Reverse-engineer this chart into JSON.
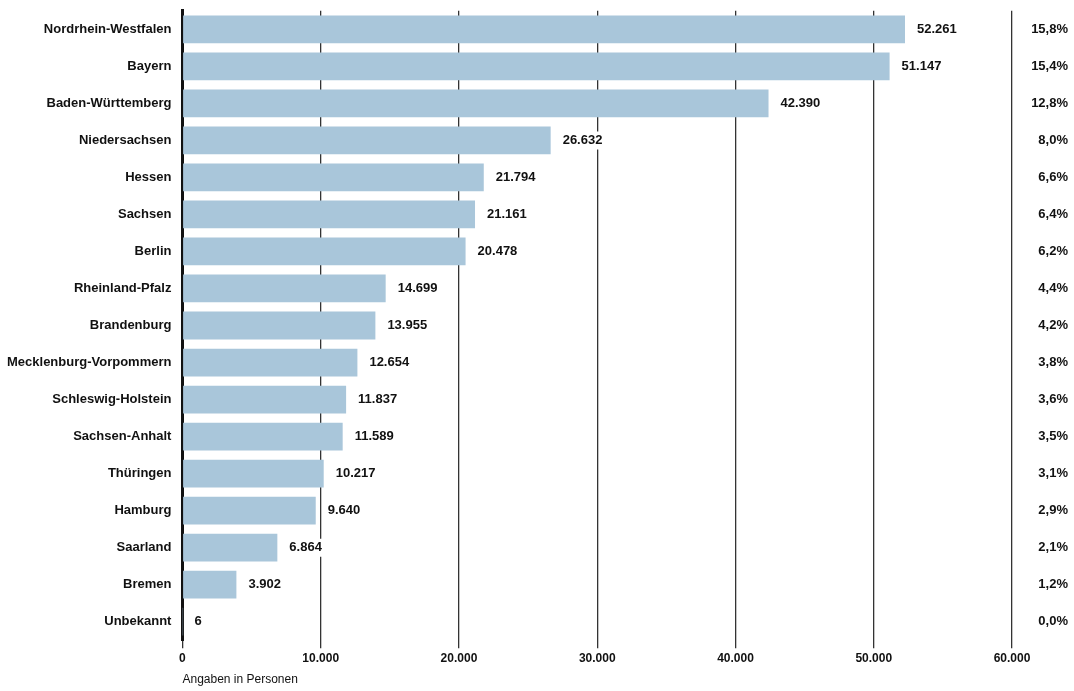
{
  "chart_data": {
    "type": "bar",
    "orientation": "horizontal",
    "xlabel": "Angaben in Personen",
    "categories": [
      "Nordrhein-Westfalen",
      "Bayern",
      "Baden-Württemberg",
      "Niedersachsen",
      "Hessen",
      "Sachsen",
      "Berlin",
      "Rheinland-Pfalz",
      "Brandenburg",
      "Mecklenburg-Vorpommern",
      "Schleswig-Holstein",
      "Sachsen-Anhalt",
      "Thüringen",
      "Hamburg",
      "Saarland",
      "Bremen",
      "Unbekannt"
    ],
    "values": [
      52261,
      51147,
      42390,
      26632,
      21794,
      21161,
      20478,
      14699,
      13955,
      12654,
      11837,
      11589,
      10217,
      9640,
      6864,
      3902,
      6
    ],
    "value_labels": [
      "52.261",
      "51.147",
      "42.390",
      "26.632",
      "21.794",
      "21.161",
      "20.478",
      "14.699",
      "13.955",
      "12.654",
      "11.837",
      "11.589",
      "10.217",
      "9.640",
      "6.864",
      "3.902",
      "6"
    ],
    "color": "#a9c6da",
    "xlim": [
      0,
      60000
    ],
    "xticks": [
      0,
      {
        "value": 10000,
        "label": "10.000"
      },
      {
        "value": 20000,
        "label": "20.000"
      },
      {
        "value": 30000,
        "label": "30.000"
      },
      {
        "value": 40000,
        "label": "40.000"
      },
      {
        "value": 50000,
        "label": "50.000"
      },
      {
        "value": 60000,
        "label": "60.000"
      }
    ],
    "grid": "x",
    "legend": false,
    "annotations": [
      "15,8%",
      "15,4%",
      "12,8%",
      "8,0%",
      "6,6%",
      "6,4%",
      "6,2%",
      "4,4%",
      "4,2%",
      "3,8%",
      "3,6%",
      "3,5%",
      "3,1%",
      "2,9%",
      "2,1%",
      "1,2%",
      "0,0%"
    ]
  }
}
